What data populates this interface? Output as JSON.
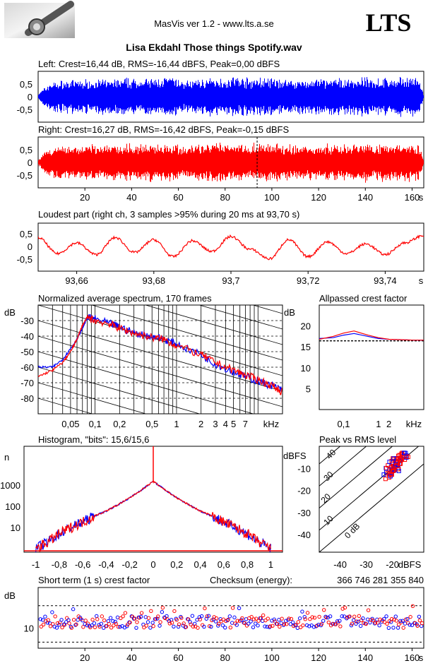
{
  "app": {
    "version_text": "MasVis ver 1.2 - www.lts.a.se",
    "brand": "LTS",
    "logo_icon": "headphone-jack-photo-icon"
  },
  "file_title": "Lisa Ekdahl Those things Spotify.wav",
  "colors": {
    "left": "#0000ff",
    "right": "#ff0000"
  },
  "chart_data": [
    {
      "id": "left-waveform",
      "type": "line",
      "title": "Left: Crest=16,44 dB, RMS=-16,44 dBFS, Peak=0,00 dBFS",
      "yticks": [
        "0,5",
        "0",
        "-0,5"
      ],
      "ylim": [
        -1,
        1
      ],
      "xlim": [
        0,
        165
      ],
      "envelope": [
        [
          0,
          0.15
        ],
        [
          5,
          0.7
        ],
        [
          10,
          0.75
        ],
        [
          20,
          0.8
        ],
        [
          30,
          0.82
        ],
        [
          40,
          0.85
        ],
        [
          50,
          0.85
        ],
        [
          55,
          0.95
        ],
        [
          58,
          0.9
        ],
        [
          62,
          0.75
        ],
        [
          70,
          0.85
        ],
        [
          80,
          0.9
        ],
        [
          85,
          0.95
        ],
        [
          90,
          0.85
        ],
        [
          95,
          0.9
        ],
        [
          100,
          0.85
        ],
        [
          110,
          0.8
        ],
        [
          120,
          0.82
        ],
        [
          130,
          0.85
        ],
        [
          140,
          0.9
        ],
        [
          150,
          0.85
        ],
        [
          160,
          0.95
        ],
        [
          163,
          0.8
        ],
        [
          165,
          0
        ]
      ]
    },
    {
      "id": "right-waveform",
      "type": "line",
      "title": "Right: Crest=16,27 dB, RMS=-16,42 dBFS, Peak=-0,15 dBFS",
      "yticks": [
        "0,5",
        "0",
        "-0,5"
      ],
      "ylim": [
        -1,
        1
      ],
      "xlim": [
        0,
        165
      ],
      "xticks": [
        "20",
        "40",
        "60",
        "80",
        "100",
        "120",
        "140",
        "160"
      ],
      "xunit": "s",
      "marker_at": 93.7,
      "envelope": [
        [
          0,
          0.15
        ],
        [
          5,
          0.7
        ],
        [
          10,
          0.75
        ],
        [
          20,
          0.8
        ],
        [
          30,
          0.82
        ],
        [
          40,
          0.85
        ],
        [
          50,
          0.85
        ],
        [
          55,
          0.95
        ],
        [
          58,
          0.9
        ],
        [
          62,
          0.75
        ],
        [
          70,
          0.85
        ],
        [
          80,
          0.9
        ],
        [
          85,
          0.95
        ],
        [
          90,
          0.85
        ],
        [
          95,
          0.9
        ],
        [
          100,
          0.85
        ],
        [
          110,
          0.8
        ],
        [
          120,
          0.82
        ],
        [
          130,
          0.85
        ],
        [
          140,
          0.9
        ],
        [
          150,
          0.85
        ],
        [
          160,
          0.95
        ],
        [
          163,
          0.8
        ],
        [
          165,
          0
        ]
      ]
    },
    {
      "id": "loudest-part",
      "type": "line",
      "title": "Loudest part (right ch, 3 samples >95% during 20 ms at 93,70 s)",
      "yticks": [
        "0,5",
        "0",
        "-0,5"
      ],
      "ylim": [
        -1,
        1
      ],
      "xticks": [
        "93,66",
        "93,68",
        "93,7",
        "93,72",
        "93,74"
      ],
      "xunit": "s",
      "xlim": [
        93.65,
        93.75
      ],
      "x": [
        93.65,
        93.655,
        93.66,
        93.665,
        93.67,
        93.675,
        93.68,
        93.685,
        93.69,
        93.695,
        93.7,
        93.705,
        93.71,
        93.715,
        93.72,
        93.725,
        93.73,
        93.735,
        93.74,
        93.745,
        93.75
      ],
      "y": [
        0.45,
        -0.3,
        0.2,
        -0.35,
        0.45,
        -0.25,
        0.35,
        -0.45,
        0.3,
        -0.2,
        0.5,
        -0.1,
        -0.55,
        0.35,
        -0.45,
        0.25,
        -0.3,
        0.15,
        -0.35,
        0.2,
        0.55
      ]
    },
    {
      "id": "average-spectrum",
      "type": "line",
      "title": "Normalized average spectrum, 170 frames",
      "ylabel": "dB",
      "yticks": [
        "-30",
        "-40",
        "-50",
        "-60",
        "-70",
        "-80"
      ],
      "ylim": [
        -90,
        -20
      ],
      "xticks": [
        "0,05",
        "0,1",
        "0,2",
        "0,5",
        "1",
        "2",
        "3",
        "4",
        "5",
        "7"
      ],
      "xunit": "kHz",
      "xlim": [
        0.02,
        20
      ],
      "series": [
        {
          "x": [
            0.02,
            0.03,
            0.04,
            0.05,
            0.06,
            0.07,
            0.08,
            0.1,
            0.15,
            0.2,
            0.3,
            0.5,
            0.7,
            1,
            2,
            3,
            5,
            7,
            10,
            15,
            20
          ],
          "y": [
            -60,
            -60,
            -55,
            -48,
            -42,
            -35,
            -28,
            -29,
            -32,
            -34,
            -38,
            -40,
            -42,
            -45,
            -52,
            -58,
            -63,
            -66,
            -69,
            -72,
            -75
          ]
        },
        {
          "x": [
            0.02,
            0.03,
            0.04,
            0.05,
            0.06,
            0.07,
            0.08,
            0.1,
            0.15,
            0.2,
            0.3,
            0.5,
            0.7,
            1,
            2,
            3,
            5,
            7,
            10,
            15,
            20
          ],
          "y": [
            -66,
            -62,
            -57,
            -50,
            -42,
            -33,
            -28,
            -30,
            -32,
            -35,
            -38,
            -41,
            -42,
            -46,
            -52,
            -57,
            -62,
            -65,
            -68,
            -72,
            -76
          ]
        }
      ]
    },
    {
      "id": "allpassed-crest",
      "type": "line",
      "title": "Allpassed crest factor",
      "ylabel": "dB",
      "yticks": [
        "20",
        "15",
        "10",
        "5"
      ],
      "ylim": [
        0,
        25
      ],
      "xticks": [
        "0,1",
        "1",
        "2"
      ],
      "xunit": "kHz",
      "xlim": [
        0.02,
        20
      ],
      "series": [
        {
          "x": [
            0.02,
            0.05,
            0.1,
            0.2,
            0.5,
            1,
            2,
            5,
            10,
            20
          ],
          "y": [
            17,
            17.2,
            17.8,
            18.2,
            17.5,
            17,
            16.8,
            16.7,
            16.6,
            16.6
          ]
        },
        {
          "x": [
            0.02,
            0.05,
            0.1,
            0.2,
            0.5,
            1,
            2,
            5,
            10,
            20
          ],
          "y": [
            16.8,
            17.5,
            18.3,
            18.8,
            17.8,
            17.2,
            16.8,
            16.7,
            16.6,
            16.6
          ]
        }
      ],
      "reference_y": 16.44
    },
    {
      "id": "histogram",
      "type": "line",
      "title": "Histogram, \"bits\": 15,6/15,6",
      "ylabel": "n",
      "yticks": [
        "1000",
        "100",
        "10"
      ],
      "ylog": true,
      "xticks": [
        "-1",
        "-0,8",
        "-0,6",
        "-0,4",
        "-0,2",
        "0",
        "0,2",
        "0,4",
        "0,6",
        "0,8",
        "1"
      ],
      "xlim": [
        -1.1,
        1.1
      ],
      "x": [
        -1,
        -0.9,
        -0.8,
        -0.7,
        -0.6,
        -0.5,
        -0.4,
        -0.3,
        -0.2,
        -0.1,
        0,
        0.1,
        0.2,
        0.3,
        0.4,
        0.5,
        0.6,
        0.7,
        0.8,
        0.9,
        1
      ],
      "y": [
        1,
        2,
        5,
        10,
        18,
        35,
        60,
        120,
        250,
        600,
        1500,
        600,
        250,
        120,
        60,
        35,
        18,
        10,
        5,
        2,
        1
      ]
    },
    {
      "id": "peak-vs-rms",
      "type": "scatter",
      "title": "Peak vs RMS level",
      "ylabel": "dBFS",
      "yticks": [
        "-10",
        "-20",
        "-30",
        "-40"
      ],
      "ylim": [
        -48,
        0
      ],
      "xticks": [
        "-40",
        "-30",
        "-20"
      ],
      "xunit": "dBFS",
      "xlim": [
        -48,
        -8
      ],
      "diag_labels": [
        "40",
        "30",
        "20",
        "10",
        "0 dB"
      ],
      "x": [
        -22,
        -21,
        -20,
        -19,
        -18,
        -17,
        -16,
        -15,
        -20,
        -19,
        -18,
        -17,
        -16,
        -21,
        -20,
        -19,
        -18,
        -17,
        -22,
        -21
      ],
      "y": [
        -11,
        -10,
        -9,
        -8,
        -7,
        -6,
        -5,
        -5,
        -7,
        -6,
        -8,
        -5,
        -4,
        -12,
        -11,
        -10,
        -9,
        -4,
        -14,
        -13
      ]
    },
    {
      "id": "short-term-crest",
      "type": "scatter",
      "title": "Short term (1 s) crest factor",
      "ylabel": "dB",
      "yticks": [
        "10"
      ],
      "ylim": [
        5,
        20
      ],
      "xticks": [
        "20",
        "40",
        "60",
        "80",
        "100",
        "120",
        "140",
        "160"
      ],
      "xunit": "s",
      "xlim": [
        0,
        165
      ],
      "dashed_levels": [
        15.5,
        6.5
      ]
    }
  ],
  "checksum": {
    "label": "Checksum (energy):",
    "value": "366 746 281 355 840"
  }
}
